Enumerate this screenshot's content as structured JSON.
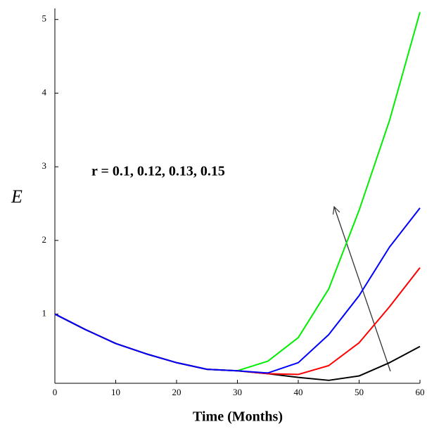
{
  "chart_data": {
    "type": "line",
    "annotation": "r = 0.1, 0.12, 0.13, 0.15",
    "xlabel": "Time (Months)",
    "ylabel": "E",
    "x": [
      0,
      5,
      10,
      15,
      20,
      25,
      30,
      35,
      40,
      45,
      50,
      55,
      60
    ],
    "series": [
      {
        "color": "#00ee00",
        "values": [
          1.0,
          0.79,
          0.6,
          0.46,
          0.34,
          0.25,
          0.23,
          0.36,
          0.68,
          1.34,
          2.41,
          3.63,
          5.1
        ]
      },
      {
        "color": "#000000",
        "values": [
          1.0,
          0.79,
          0.6,
          0.46,
          0.34,
          0.25,
          0.23,
          0.19,
          0.14,
          0.1,
          0.16,
          0.34,
          0.56
        ]
      },
      {
        "color": "#ff0000",
        "values": [
          1.0,
          0.79,
          0.6,
          0.46,
          0.34,
          0.25,
          0.23,
          0.19,
          0.18,
          0.3,
          0.61,
          1.1,
          1.63
        ]
      },
      {
        "color": "#0000ff",
        "values": [
          1.0,
          0.79,
          0.6,
          0.46,
          0.34,
          0.25,
          0.23,
          0.2,
          0.34,
          0.72,
          1.25,
          1.91,
          2.44
        ]
      }
    ],
    "xlim": [
      0,
      60
    ],
    "xticks": [
      0,
      10,
      20,
      30,
      40,
      50,
      60
    ],
    "ylim": [
      0.06,
      5.15
    ],
    "yticks": [
      1,
      2,
      3,
      4,
      5
    ]
  }
}
